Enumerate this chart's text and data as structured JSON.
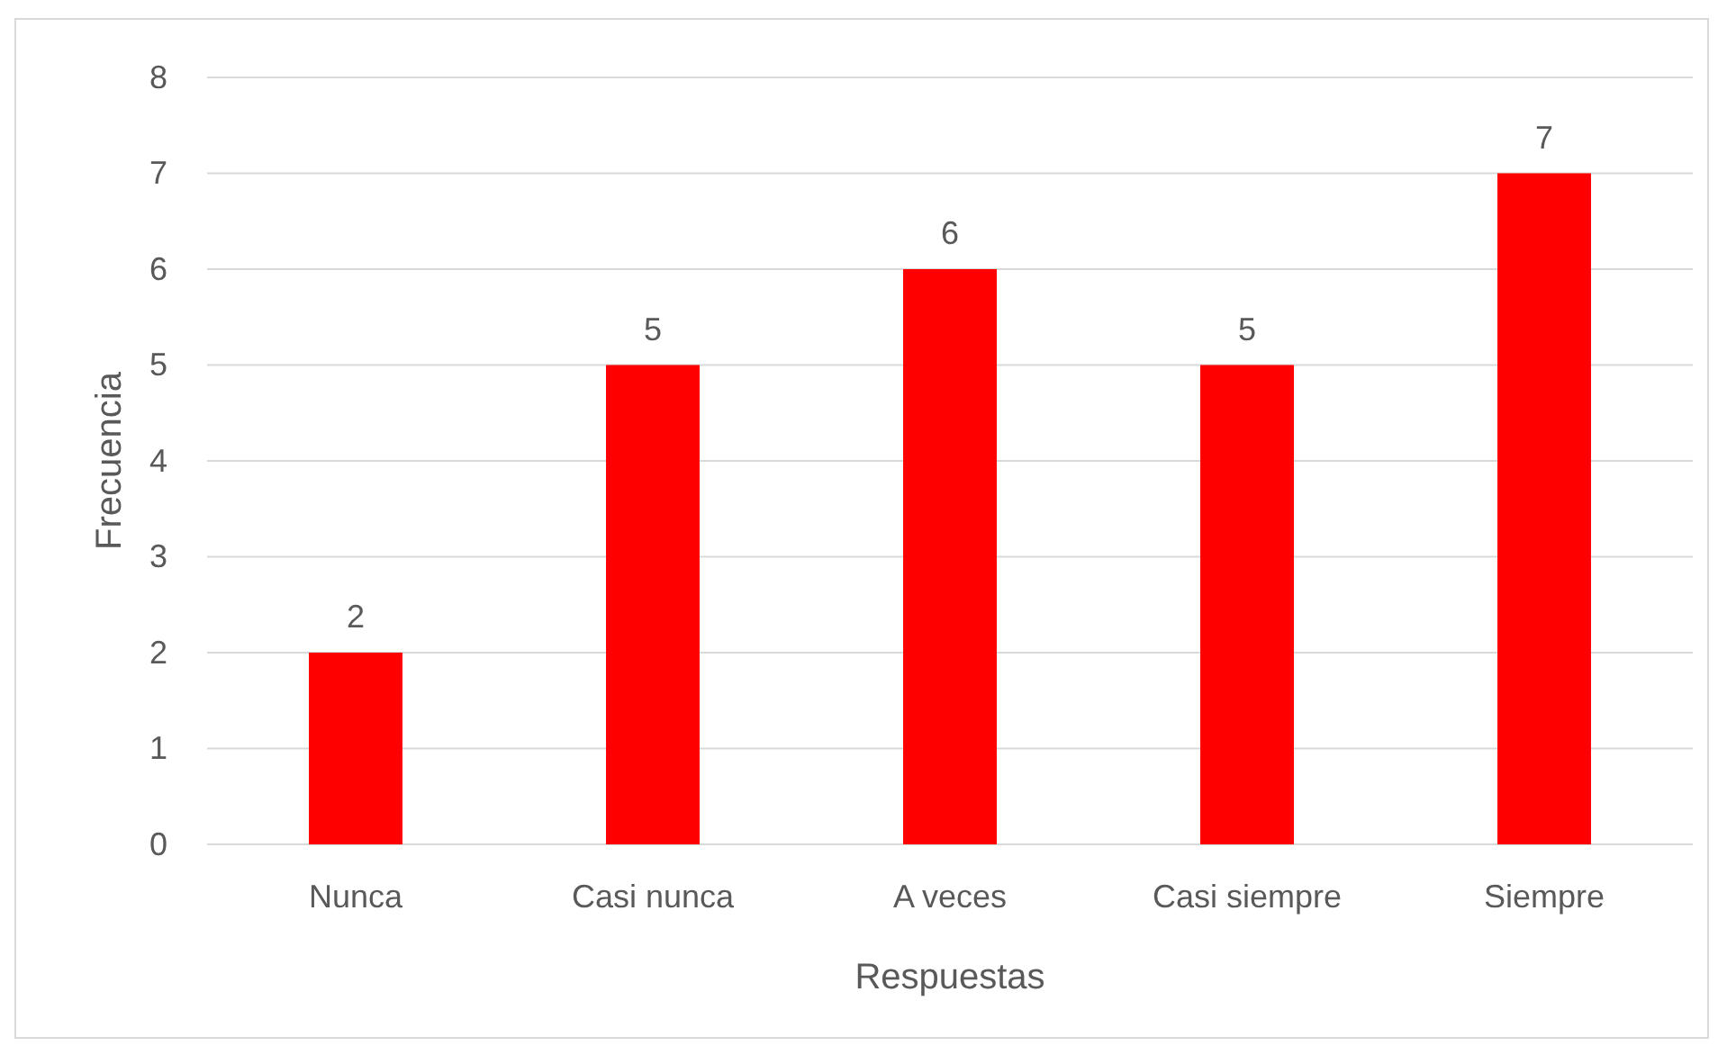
{
  "chart_data": {
    "type": "bar",
    "xlabel": "Respuestas",
    "ylabel": "Frecuencia",
    "categories": [
      "Nunca",
      "Casi nunca",
      "A veces",
      "Casi siempre",
      "Siempre"
    ],
    "values": [
      2,
      5,
      6,
      5,
      7
    ],
    "color": "#ff0000",
    "ylim": [
      0,
      8
    ],
    "yticks": [
      0,
      1,
      2,
      3,
      4,
      5,
      6,
      7,
      8
    ],
    "grid": "y",
    "data_labels": true
  }
}
